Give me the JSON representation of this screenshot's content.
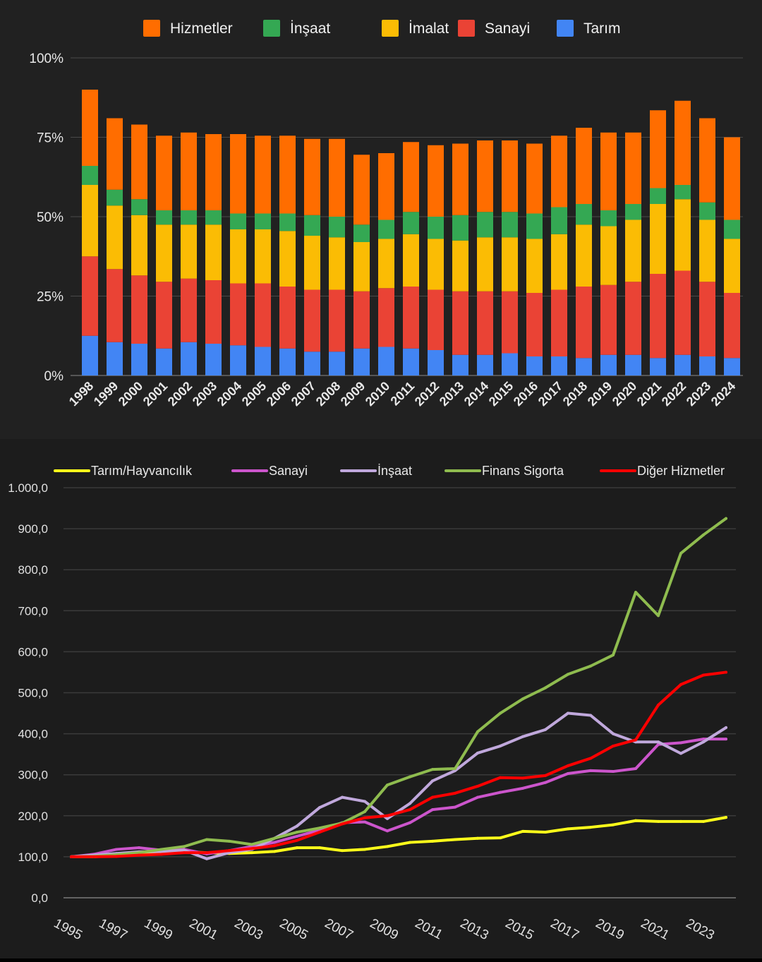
{
  "chart_data": [
    {
      "type": "bar",
      "stacked": true,
      "title": "",
      "categories": [
        "1998",
        "1999",
        "2000",
        "2001",
        "2002",
        "2003",
        "2004",
        "2005",
        "2006",
        "2007",
        "2008",
        "2009",
        "2010",
        "2011",
        "2012",
        "2013",
        "2014",
        "2015",
        "2016",
        "2017",
        "2018",
        "2019",
        "2020",
        "2021",
        "2022",
        "2023",
        "2024"
      ],
      "series": [
        {
          "name": "Tarım",
          "color": "#4285f4",
          "values": [
            12.5,
            10.5,
            10,
            8.5,
            10.5,
            10,
            9.5,
            9,
            8.5,
            7.5,
            7.5,
            8.5,
            9,
            8.5,
            8,
            6.5,
            6.5,
            7,
            6,
            6,
            5.5,
            6.5,
            6.5,
            5.5,
            6.5,
            6,
            5.5
          ]
        },
        {
          "name": "Sanayi",
          "color": "#ea4335",
          "values": [
            25,
            23,
            21.5,
            21,
            20,
            20,
            19.5,
            20,
            19.5,
            19.5,
            19.5,
            18,
            18.5,
            19.5,
            19,
            20,
            20,
            19.5,
            20,
            21,
            22.5,
            22,
            23,
            26.5,
            26.5,
            23.5,
            20.5
          ]
        },
        {
          "name": "İmalat",
          "color": "#fbbc04",
          "values": [
            22.5,
            20,
            19,
            18,
            17,
            17.5,
            17,
            17,
            17.5,
            17,
            16.5,
            15.5,
            15.5,
            16.5,
            16,
            16,
            17,
            17,
            17,
            17.5,
            19.5,
            18.5,
            19.5,
            22,
            22.5,
            19.5,
            17
          ]
        },
        {
          "name": "İnşaat",
          "color": "#34a853",
          "values": [
            6,
            5,
            5,
            4.5,
            4.5,
            4.5,
            5,
            5,
            5.5,
            6.5,
            6.5,
            5.5,
            6,
            7,
            7,
            8,
            8,
            8,
            8,
            8.5,
            6.5,
            5,
            5,
            5,
            4.5,
            5.5,
            6
          ]
        },
        {
          "name": "Hizmetler",
          "color": "#ff6d00",
          "values": [
            24,
            22.5,
            23.5,
            23.5,
            24.5,
            24,
            25,
            24.5,
            24.5,
            24,
            24.5,
            22,
            21,
            22,
            22.5,
            22.5,
            22.5,
            22.5,
            22,
            22.5,
            24,
            24.5,
            22.5,
            24.5,
            26.5,
            26.5,
            26
          ]
        }
      ],
      "ylim": [
        0,
        100
      ],
      "yticks": [
        "0%",
        "25%",
        "50%",
        "75%",
        "100%"
      ],
      "legend_order": [
        "Hizmetler",
        "İnşaat",
        "İmalat",
        "Sanayi",
        "Tarım"
      ],
      "legend": "top-center",
      "grid": true
    },
    {
      "type": "line",
      "title": "",
      "x": [
        "1995",
        "1996",
        "1997",
        "1998",
        "1999",
        "2000",
        "2001",
        "2002",
        "2003",
        "2004",
        "2005",
        "2006",
        "2007",
        "2008",
        "2009",
        "2010",
        "2011",
        "2012",
        "2013",
        "2014",
        "2015",
        "2016",
        "2017",
        "2018",
        "2019",
        "2020",
        "2021",
        "2022",
        "2023",
        "2024"
      ],
      "xticks": [
        "1995",
        "1997",
        "1999",
        "2001",
        "2003",
        "2005",
        "2007",
        "2009",
        "2011",
        "2013",
        "2015",
        "2017",
        "2019",
        "2021",
        "2023"
      ],
      "series": [
        {
          "name": "Tarım/Hayvancılık",
          "color": "#ffff1a",
          "values": [
            100,
            100,
            103,
            106,
            108,
            112,
            110,
            108,
            110,
            113,
            122,
            122,
            115,
            118,
            125,
            135,
            138,
            142,
            145,
            146,
            162,
            160,
            168,
            172,
            178,
            188,
            186,
            186,
            186,
            196
          ]
        },
        {
          "name": "Sanayi",
          "color": "#cc55cc",
          "values": [
            100,
            106,
            118,
            122,
            116,
            118,
            107,
            115,
            125,
            135,
            150,
            165,
            183,
            185,
            163,
            183,
            215,
            221,
            245,
            257,
            267,
            281,
            303,
            310,
            308,
            315,
            374,
            378,
            387,
            387
          ]
        },
        {
          "name": "İnşaat",
          "color": "#c0a8dc",
          "values": [
            100,
            104,
            108,
            112,
            113,
            116,
            95,
            110,
            118,
            145,
            175,
            220,
            245,
            235,
            193,
            230,
            285,
            310,
            353,
            370,
            393,
            410,
            450,
            445,
            400,
            380,
            380,
            352,
            380,
            415
          ]
        },
        {
          "name": "Finans Sigorta",
          "color": "#8fbc4f",
          "values": [
            100,
            101,
            105,
            110,
            118,
            125,
            142,
            138,
            130,
            145,
            160,
            170,
            182,
            210,
            275,
            295,
            313,
            315,
            405,
            450,
            485,
            512,
            545,
            565,
            592,
            745,
            688,
            840,
            885,
            925
          ]
        },
        {
          "name": "Diğer Hizmetler",
          "color": "#ff0000",
          "values": [
            100,
            100,
            101,
            104,
            106,
            110,
            110,
            115,
            120,
            127,
            140,
            160,
            180,
            195,
            200,
            215,
            245,
            255,
            272,
            293,
            292,
            298,
            322,
            340,
            370,
            385,
            470,
            520,
            543,
            550
          ]
        }
      ],
      "ylim": [
        0,
        1000
      ],
      "yticks": [
        "0,0",
        "100,0",
        "200,0",
        "300,0",
        "400,0",
        "500,0",
        "600,0",
        "700,0",
        "800,0",
        "900,0",
        "1.000,0"
      ],
      "legend": "top",
      "grid": true
    }
  ]
}
